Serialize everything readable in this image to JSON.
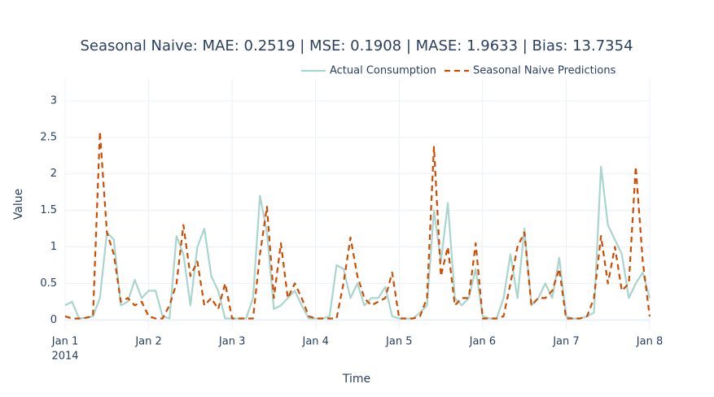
{
  "chart_data": {
    "type": "line",
    "title": "Seasonal Naive: MAE: 0.2519 | MSE: 0.1908 | MASE: 1.9633 | Bias: 13.7354",
    "x_label": "Time",
    "y_label": "Value",
    "x": [
      "2014-01-01 00:00",
      "2014-01-01 02:00",
      "2014-01-01 04:00",
      "2014-01-01 06:00",
      "2014-01-01 08:00",
      "2014-01-01 10:00",
      "2014-01-01 12:00",
      "2014-01-01 14:00",
      "2014-01-01 16:00",
      "2014-01-01 18:00",
      "2014-01-01 20:00",
      "2014-01-01 22:00",
      "2014-01-02 00:00",
      "2014-01-02 02:00",
      "2014-01-02 04:00",
      "2014-01-02 06:00",
      "2014-01-02 08:00",
      "2014-01-02 10:00",
      "2014-01-02 12:00",
      "2014-01-02 14:00",
      "2014-01-02 16:00",
      "2014-01-02 18:00",
      "2014-01-02 20:00",
      "2014-01-02 22:00",
      "2014-01-03 00:00",
      "2014-01-03 02:00",
      "2014-01-03 04:00",
      "2014-01-03 06:00",
      "2014-01-03 08:00",
      "2014-01-03 10:00",
      "2014-01-03 12:00",
      "2014-01-03 14:00",
      "2014-01-03 16:00",
      "2014-01-03 18:00",
      "2014-01-03 20:00",
      "2014-01-03 22:00",
      "2014-01-04 00:00",
      "2014-01-04 02:00",
      "2014-01-04 04:00",
      "2014-01-04 06:00",
      "2014-01-04 08:00",
      "2014-01-04 10:00",
      "2014-01-04 12:00",
      "2014-01-04 14:00",
      "2014-01-04 16:00",
      "2014-01-04 18:00",
      "2014-01-04 20:00",
      "2014-01-04 22:00",
      "2014-01-05 00:00",
      "2014-01-05 02:00",
      "2014-01-05 04:00",
      "2014-01-05 06:00",
      "2014-01-05 08:00",
      "2014-01-05 10:00",
      "2014-01-05 12:00",
      "2014-01-05 14:00",
      "2014-01-05 16:00",
      "2014-01-05 18:00",
      "2014-01-05 20:00",
      "2014-01-05 22:00",
      "2014-01-06 00:00",
      "2014-01-06 02:00",
      "2014-01-06 04:00",
      "2014-01-06 06:00",
      "2014-01-06 08:00",
      "2014-01-06 10:00",
      "2014-01-06 12:00",
      "2014-01-06 14:00",
      "2014-01-06 16:00",
      "2014-01-06 18:00",
      "2014-01-06 20:00",
      "2014-01-06 22:00",
      "2014-01-07 00:00",
      "2014-01-07 02:00",
      "2014-01-07 04:00",
      "2014-01-07 06:00",
      "2014-01-07 08:00",
      "2014-01-07 10:00",
      "2014-01-07 12:00",
      "2014-01-07 14:00",
      "2014-01-07 16:00",
      "2014-01-07 18:00",
      "2014-01-07 20:00",
      "2014-01-07 22:00",
      "2014-01-08 00:00"
    ],
    "series": [
      {
        "name": "Actual Consumption",
        "color": "#a8d5cd",
        "dash": false,
        "values": [
          0.2,
          0.25,
          0.02,
          0.03,
          0.05,
          0.3,
          1.2,
          1.1,
          0.2,
          0.25,
          0.55,
          0.3,
          0.4,
          0.4,
          0.05,
          0.02,
          1.15,
          0.9,
          0.2,
          1.0,
          1.25,
          0.6,
          0.4,
          0.02,
          0.02,
          0.02,
          0.02,
          0.3,
          1.7,
          1.2,
          0.15,
          0.2,
          0.3,
          0.4,
          0.2,
          0.02,
          0.02,
          0.02,
          0.05,
          0.75,
          0.7,
          0.3,
          0.5,
          0.2,
          0.3,
          0.3,
          0.45,
          0.05,
          0.02,
          0.02,
          0.02,
          0.1,
          0.2,
          1.5,
          0.8,
          1.6,
          0.3,
          0.2,
          0.3,
          0.7,
          0.05,
          0.02,
          0.02,
          0.3,
          0.9,
          0.3,
          1.25,
          0.2,
          0.3,
          0.5,
          0.3,
          0.85,
          0.05,
          0.02,
          0.02,
          0.05,
          0.1,
          2.1,
          1.3,
          1.1,
          0.9,
          0.3,
          0.5,
          0.65,
          0.3
        ]
      },
      {
        "name": "Seasonal Naive Predictions",
        "color": "#cc4c02",
        "dash": true,
        "values": [
          0.05,
          0.02,
          0.02,
          0.03,
          0.05,
          2.58,
          1.2,
          0.9,
          0.25,
          0.3,
          0.2,
          0.25,
          0.05,
          0.02,
          0.02,
          0.2,
          0.5,
          1.3,
          0.6,
          0.8,
          0.2,
          0.3,
          0.15,
          0.5,
          0.02,
          0.02,
          0.02,
          0.02,
          0.9,
          1.55,
          0.3,
          1.05,
          0.3,
          0.5,
          0.3,
          0.05,
          0.02,
          0.02,
          0.02,
          0.02,
          0.5,
          1.13,
          0.6,
          0.3,
          0.2,
          0.25,
          0.3,
          0.65,
          0.02,
          0.02,
          0.02,
          0.05,
          0.3,
          2.37,
          0.6,
          1.0,
          0.2,
          0.3,
          0.3,
          1.05,
          0.02,
          0.02,
          0.02,
          0.05,
          0.5,
          1.0,
          1.2,
          0.2,
          0.3,
          0.3,
          0.4,
          0.7,
          0.02,
          0.02,
          0.02,
          0.05,
          0.3,
          1.15,
          0.5,
          1.0,
          0.4,
          0.5,
          2.1,
          0.8,
          0.05
        ]
      }
    ],
    "xlim": [
      "2014-01-01 00:00",
      "2014-01-08 00:00"
    ],
    "xticks": [
      {
        "value": "2014-01-01 00:00",
        "label": "Jan 1"
      },
      {
        "value": "2014-01-02 00:00",
        "label": "Jan 2"
      },
      {
        "value": "2014-01-03 00:00",
        "label": "Jan 3"
      },
      {
        "value": "2014-01-04 00:00",
        "label": "Jan 4"
      },
      {
        "value": "2014-01-05 00:00",
        "label": "Jan 5"
      },
      {
        "value": "2014-01-06 00:00",
        "label": "Jan 6"
      },
      {
        "value": "2014-01-07 00:00",
        "label": "Jan 7"
      },
      {
        "value": "2014-01-08 00:00",
        "label": "Jan 8"
      }
    ],
    "x_year": "2014",
    "ylim": [
      -0.13,
      3.3
    ],
    "yticks": [
      0,
      0.5,
      1,
      1.5,
      2,
      2.5,
      3
    ],
    "grid": true,
    "legend": "top-right"
  }
}
